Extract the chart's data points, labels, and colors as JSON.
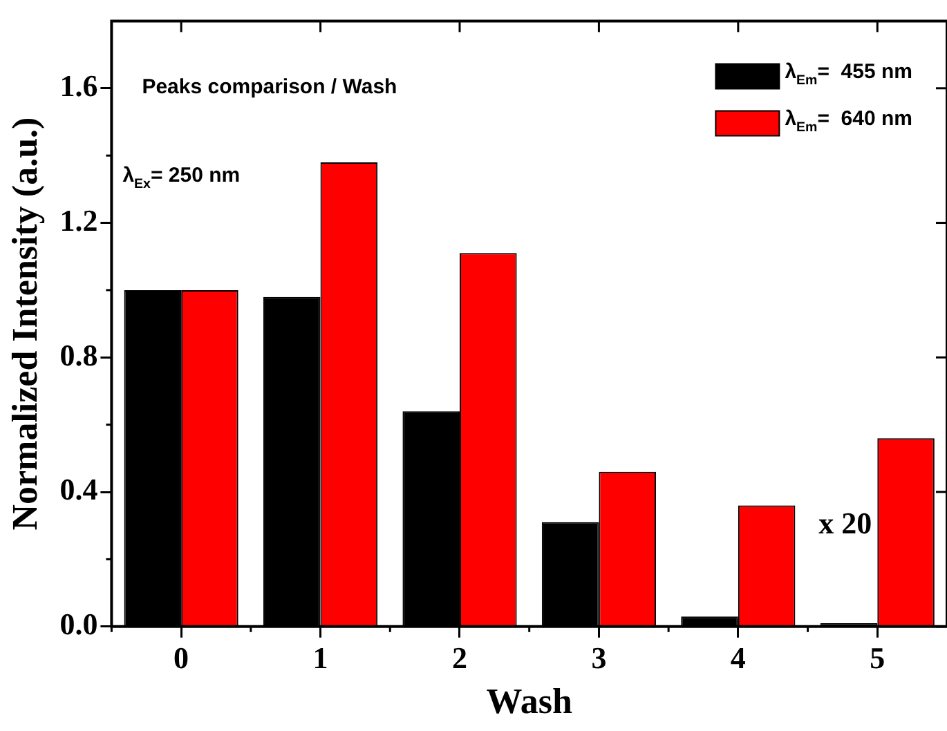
{
  "chart_data": {
    "type": "bar",
    "xlabel": "Wash",
    "ylabel": "Normalized Intensity (a.u.)",
    "categories": [
      "0",
      "1",
      "2",
      "3",
      "4",
      "5"
    ],
    "series": [
      {
        "name": "λ$_{Em}$=  455 nm",
        "color": "#000000",
        "values": [
          1.0,
          0.98,
          0.64,
          0.31,
          0.03,
          0.01
        ]
      },
      {
        "name": "λ$_{Em}$=  640 nm",
        "color": "#ff0000",
        "values": [
          1.0,
          1.38,
          1.11,
          0.46,
          0.36,
          0.56
        ]
      }
    ],
    "ylim": [
      0,
      1.8
    ],
    "yticks": [
      {
        "value": 0,
        "label": "0.0"
      },
      {
        "value": 0.4,
        "label": "0.4"
      },
      {
        "value": 0.8,
        "label": "0.8"
      },
      {
        "value": 1.2,
        "label": "1.2"
      },
      {
        "value": 1.6,
        "label": "1.6"
      }
    ],
    "annotations": [
      "Peaks comparison / Wash",
      "λ$_{Ex}$= 250 nm",
      {
        "text": "x 20",
        "x": "5",
        "y": 0.3
      }
    ],
    "legend": "top right",
    "grid": false
  }
}
